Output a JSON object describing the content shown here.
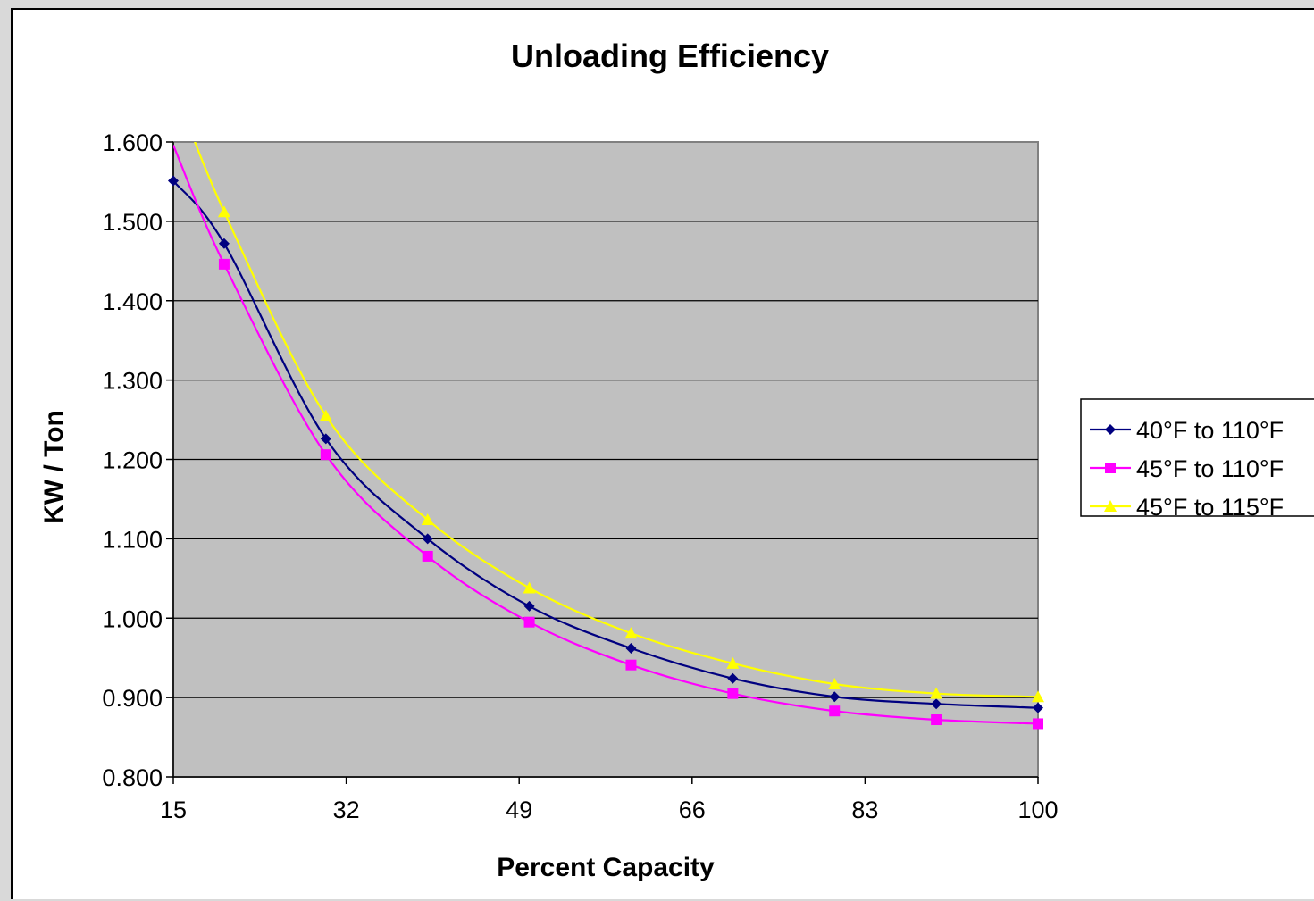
{
  "chart_data": {
    "type": "line",
    "title": "Unloading Efficiency",
    "xlabel": "Percent Capacity",
    "ylabel": "KW / Ton",
    "xlim": [
      15,
      100
    ],
    "ylim": [
      0.8,
      1.6
    ],
    "x_ticks": [
      "15",
      "32",
      "49",
      "66",
      "83",
      "100"
    ],
    "y_ticks": [
      "0.800",
      "0.900",
      "1.000",
      "1.100",
      "1.200",
      "1.300",
      "1.400",
      "1.500",
      "1.600"
    ],
    "grid": true,
    "plot_background": "#c0c0c0",
    "legend_position": "right",
    "x": [
      15,
      20,
      30,
      40,
      50,
      60,
      70,
      80,
      90,
      100
    ],
    "series": [
      {
        "name": "40°F to 110°F",
        "color": "#000080",
        "marker": "diamond",
        "values": [
          1.551,
          1.472,
          1.226,
          1.1,
          1.015,
          0.962,
          0.924,
          0.901,
          0.892,
          0.887
        ]
      },
      {
        "name": "45°F to 110°F",
        "color": "#ff00ff",
        "marker": "square",
        "values": [
          null,
          1.446,
          1.206,
          1.078,
          0.995,
          0.941,
          0.905,
          0.883,
          0.872,
          0.867
        ]
      },
      {
        "name": "45°F to 115°F",
        "color": "#ffff00",
        "marker": "triangle",
        "values": [
          null,
          1.512,
          1.255,
          1.124,
          1.038,
          0.981,
          0.943,
          0.917,
          0.905,
          0.901
        ]
      }
    ]
  }
}
